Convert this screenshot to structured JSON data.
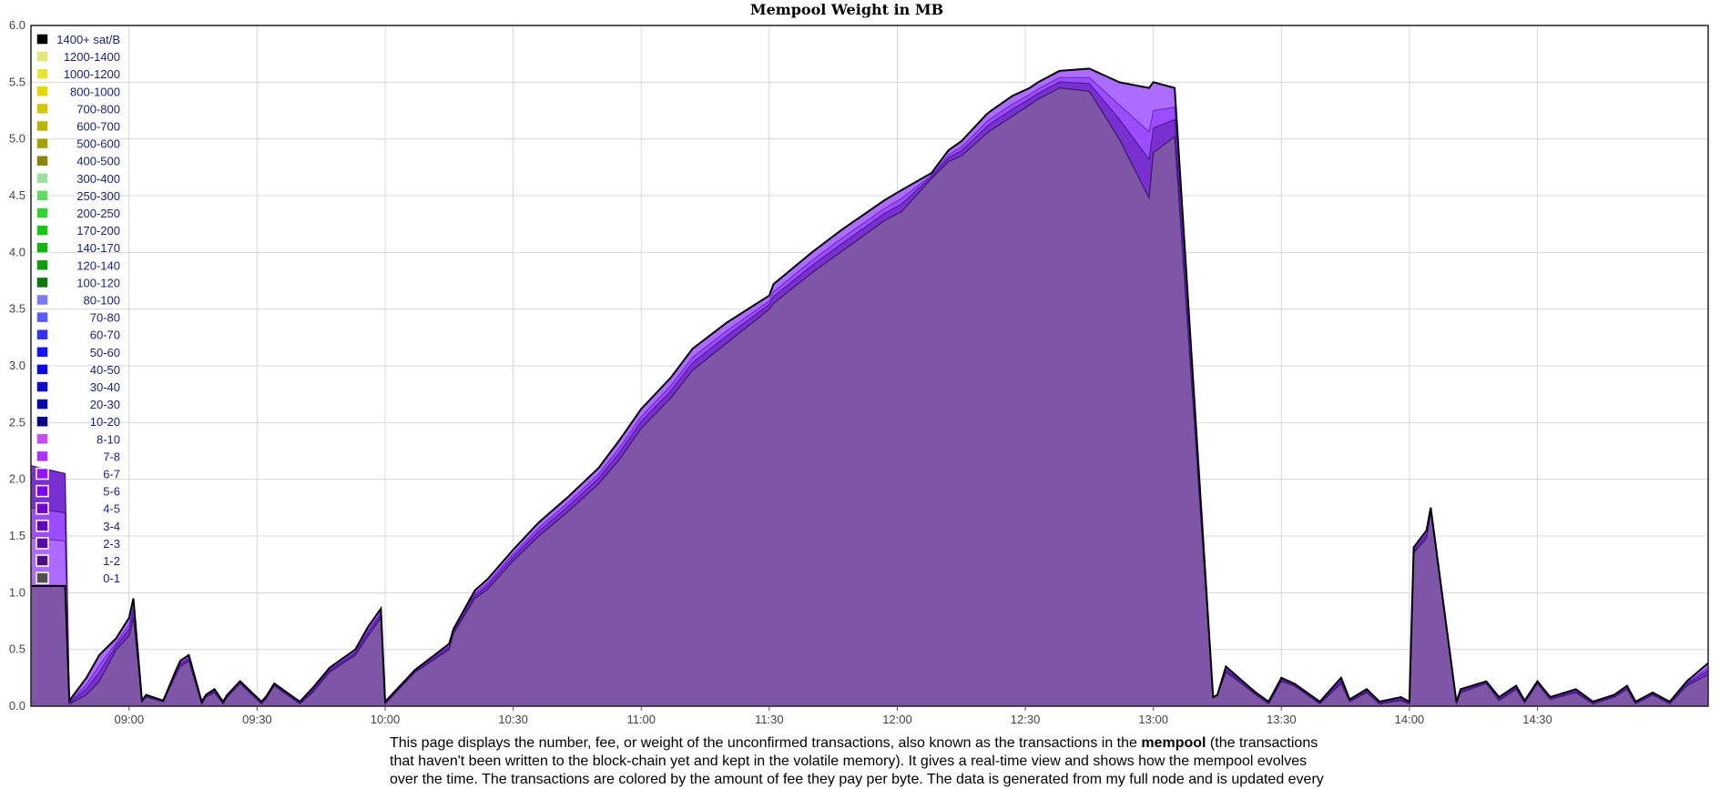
{
  "chart_data": {
    "type": "area",
    "title": "Mempool Weight in MB",
    "xlabel": "",
    "ylabel": "",
    "ylim": [
      0,
      6.0
    ],
    "yticks": [
      "0.0",
      "0.5",
      "1.0",
      "1.5",
      "2.0",
      "2.5",
      "3.0",
      "3.5",
      "4.0",
      "4.5",
      "5.0",
      "5.5",
      "6.0"
    ],
    "xlim": [
      "08:37",
      "15:10"
    ],
    "xticks": [
      "09:00",
      "09:30",
      "10:00",
      "10:30",
      "11:00",
      "11:30",
      "12:00",
      "12:30",
      "13:00",
      "13:30",
      "14:00",
      "14:30"
    ],
    "grid": true,
    "legend_position": "top-left",
    "legend": [
      {
        "label": "1400+ sat/B",
        "color": "#000000"
      },
      {
        "label": "1200-1400",
        "color": "#e6e67a"
      },
      {
        "label": "1000-1200",
        "color": "#e6e632"
      },
      {
        "label": "800-1000",
        "color": "#e6d800"
      },
      {
        "label": "700-800",
        "color": "#d2c800"
      },
      {
        "label": "600-700",
        "color": "#bdb400"
      },
      {
        "label": "500-600",
        "color": "#a6a000"
      },
      {
        "label": "400-500",
        "color": "#8a8400"
      },
      {
        "label": "300-400",
        "color": "#9be39b"
      },
      {
        "label": "250-300",
        "color": "#5fdc5f"
      },
      {
        "label": "200-250",
        "color": "#32d232"
      },
      {
        "label": "170-200",
        "color": "#14c814"
      },
      {
        "label": "140-170",
        "color": "#10b410"
      },
      {
        "label": "120-140",
        "color": "#0ca00c"
      },
      {
        "label": "100-120",
        "color": "#087a08"
      },
      {
        "label": "80-100",
        "color": "#7a7aff"
      },
      {
        "label": "70-80",
        "color": "#5a5aff"
      },
      {
        "label": "60-70",
        "color": "#3232ff"
      },
      {
        "label": "50-60",
        "color": "#1414ff"
      },
      {
        "label": "40-50",
        "color": "#0a0ae6"
      },
      {
        "label": "30-40",
        "color": "#0a0ac8"
      },
      {
        "label": "20-30",
        "color": "#0808aa"
      },
      {
        "label": "10-20",
        "color": "#06068c"
      },
      {
        "label": "8-10",
        "color": "#c64cff"
      },
      {
        "label": "7-8",
        "color": "#b030ff"
      },
      {
        "label": "6-7",
        "color": "#9414ff"
      },
      {
        "label": "5-6",
        "color": "#8000f0"
      },
      {
        "label": "4-5",
        "color": "#7000d6"
      },
      {
        "label": "3-4",
        "color": "#6400c0"
      },
      {
        "label": "2-3",
        "color": "#5a0aa8"
      },
      {
        "label": "1-2",
        "color": "#4a1080"
      },
      {
        "label": "0-1",
        "color": "#505050"
      }
    ],
    "x": [
      "08:37",
      "08:45",
      "08:46",
      "08:50",
      "08:53",
      "08:57",
      "09:00",
      "09:01",
      "09:03",
      "09:04",
      "09:08",
      "09:11",
      "09:12",
      "09:14",
      "09:17",
      "09:18",
      "09:20",
      "09:22",
      "09:23",
      "09:26",
      "09:31",
      "09:32",
      "09:34",
      "09:40",
      "09:43",
      "09:47",
      "09:53",
      "09:56",
      "09:59",
      "10:00",
      "10:07",
      "10:15",
      "10:16",
      "10:21",
      "10:24",
      "10:30",
      "10:36",
      "10:43",
      "10:50",
      "10:55",
      "11:00",
      "11:07",
      "11:12",
      "11:20",
      "11:30",
      "11:31",
      "11:40",
      "11:47",
      "11:57",
      "12:01",
      "12:08",
      "12:12",
      "12:15",
      "12:21",
      "12:22",
      "12:27",
      "12:31",
      "12:33",
      "12:38",
      "12:45",
      "12:52",
      "12:59",
      "13:00",
      "13:05",
      "13:14",
      "13:15",
      "13:17",
      "13:20",
      "13:24",
      "13:27",
      "13:30",
      "13:33",
      "13:39",
      "13:44",
      "13:46",
      "13:50",
      "13:53",
      "13:58",
      "14:00",
      "14:01",
      "14:04",
      "14:05",
      "14:11",
      "14:12",
      "14:18",
      "14:21",
      "14:25",
      "14:27",
      "14:30",
      "14:33",
      "14:39",
      "14:43",
      "14:48",
      "14:51",
      "14:53",
      "14:57",
      "15:01",
      "15:05",
      "15:10"
    ],
    "series": [
      {
        "label": "0-1",
        "values": [
          2.12,
          2.05,
          0.02,
          0.1,
          0.22,
          0.5,
          0.62,
          0.78,
          0.04,
          0.08,
          0.04,
          0.28,
          0.35,
          0.4,
          0.02,
          0.08,
          0.12,
          0.02,
          0.08,
          0.2,
          0.02,
          0.06,
          0.18,
          0.02,
          0.12,
          0.3,
          0.45,
          0.62,
          0.78,
          0.02,
          0.3,
          0.5,
          0.64,
          0.95,
          1.03,
          1.28,
          1.5,
          1.72,
          1.96,
          2.18,
          2.45,
          2.72,
          2.96,
          3.2,
          3.5,
          3.55,
          3.82,
          4.01,
          4.28,
          4.36,
          4.65,
          4.8,
          4.85,
          5.05,
          5.08,
          5.2,
          5.3,
          5.35,
          5.45,
          5.42,
          5.0,
          4.48,
          4.88,
          5.02,
          0.08,
          0.1,
          0.3,
          0.22,
          0.1,
          0.02,
          0.22,
          0.18,
          0.02,
          0.2,
          0.04,
          0.12,
          0.02,
          0.05,
          0.02,
          1.35,
          1.48,
          1.72,
          0.02,
          0.12,
          0.2,
          0.05,
          0.15,
          0.03,
          0.2,
          0.06,
          0.12,
          0.02,
          0.08,
          0.15,
          0.02,
          0.1,
          0.02,
          0.18,
          0.28
        ]
      },
      {
        "label": "2-3",
        "values": [
          1.06,
          1.06,
          0.05,
          0.25,
          0.45,
          0.6,
          0.78,
          0.95,
          0.05,
          0.1,
          0.05,
          0.32,
          0.4,
          0.45,
          0.04,
          0.1,
          0.15,
          0.04,
          0.1,
          0.22,
          0.04,
          0.08,
          0.2,
          0.04,
          0.16,
          0.34,
          0.5,
          0.7,
          0.86,
          0.04,
          0.32,
          0.55,
          0.68,
          1.02,
          1.12,
          1.38,
          1.62,
          1.85,
          2.1,
          2.35,
          2.62,
          2.9,
          3.15,
          3.38,
          3.62,
          3.72,
          4.0,
          4.2,
          4.46,
          4.55,
          4.7,
          4.9,
          4.98,
          5.22,
          5.25,
          5.38,
          5.45,
          5.5,
          5.6,
          5.62,
          5.5,
          5.45,
          5.5,
          5.45,
          0.08,
          0.1,
          0.35,
          0.25,
          0.12,
          0.04,
          0.25,
          0.2,
          0.04,
          0.25,
          0.06,
          0.15,
          0.04,
          0.08,
          0.04,
          1.4,
          1.55,
          1.75,
          0.04,
          0.15,
          0.22,
          0.08,
          0.18,
          0.05,
          0.22,
          0.08,
          0.15,
          0.04,
          0.1,
          0.18,
          0.04,
          0.12,
          0.04,
          0.22,
          0.38
        ]
      }
    ]
  },
  "description": {
    "prefix": "This page displays the number, fee, or weight of the unconfirmed transactions, also known as the transactions in the ",
    "bold": "mempool",
    "suffix": " (the transactions that haven't been written to the block-chain yet and kept in the volatile memory). It gives a real-time view and shows how the mempool evolves over the time. The transactions are colored by the amount of fee they pay per byte. The data is generated from my full node and is updated every"
  },
  "colors": {
    "area_base": "#7f55a8",
    "area_mid": "#9b4dff",
    "area_top": "#ab6cff",
    "outline": "#000000",
    "grid": "#d8d8d8"
  }
}
